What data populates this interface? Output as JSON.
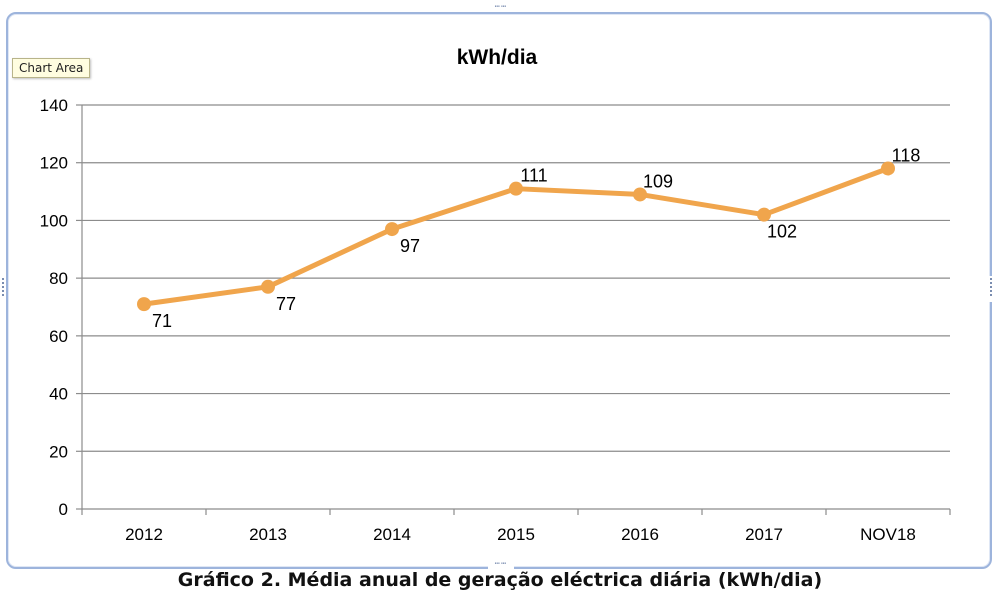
{
  "tooltip": "Chart Area",
  "caption": "Gráfico 2. Média anual de geração eléctrica diária (kWh/dia)",
  "chart_data": {
    "type": "line",
    "title": "kWh/dia",
    "xlabel": "",
    "ylabel": "",
    "categories": [
      "2012",
      "2013",
      "2014",
      "2015",
      "2016",
      "2017",
      "NOV18"
    ],
    "series": [
      {
        "values": [
          71,
          77,
          97,
          111,
          109,
          102,
          118
        ],
        "color": "#f0a54c"
      }
    ],
    "ylim": [
      0,
      140
    ],
    "yticks": [
      0,
      20,
      40,
      60,
      80,
      100,
      120,
      140
    ],
    "grid": true,
    "legend": "none",
    "data_labels": [
      "71",
      "77",
      "97",
      "111",
      "109",
      "102",
      "118"
    ],
    "colors": {
      "line": "#f0a54c",
      "grid": "#8c8c8c",
      "axis": "#8c8c8c",
      "text": "#000000"
    }
  }
}
